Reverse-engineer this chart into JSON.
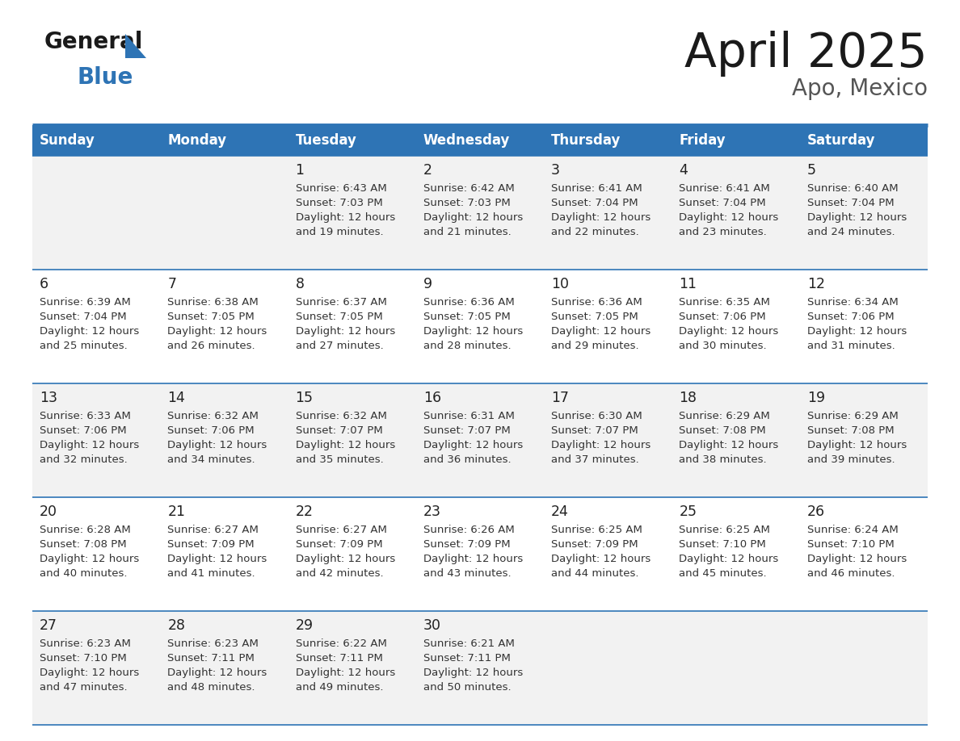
{
  "title": "April 2025",
  "subtitle": "Apo, Mexico",
  "days_of_week": [
    "Sunday",
    "Monday",
    "Tuesday",
    "Wednesday",
    "Thursday",
    "Friday",
    "Saturday"
  ],
  "header_bg": "#2e74b5",
  "header_text_color": "#ffffff",
  "cell_bg_odd": "#f2f2f2",
  "cell_bg_even": "#ffffff",
  "row_line_color": "#2e74b5",
  "text_color": "#333333",
  "title_color": "#1a1a1a",
  "subtitle_color": "#555555",
  "logo_color_general": "#1a1a1a",
  "logo_color_blue": "#2e74b5",
  "logo_triangle_color": "#2e74b5",
  "calendar_data": [
    [
      {
        "day": "",
        "sunrise": "",
        "sunset": "",
        "daylight_min": 0
      },
      {
        "day": "",
        "sunrise": "",
        "sunset": "",
        "daylight_min": 0
      },
      {
        "day": "1",
        "sunrise": "6:43 AM",
        "sunset": "7:03 PM",
        "daylight_min": 19
      },
      {
        "day": "2",
        "sunrise": "6:42 AM",
        "sunset": "7:03 PM",
        "daylight_min": 21
      },
      {
        "day": "3",
        "sunrise": "6:41 AM",
        "sunset": "7:04 PM",
        "daylight_min": 22
      },
      {
        "day": "4",
        "sunrise": "6:41 AM",
        "sunset": "7:04 PM",
        "daylight_min": 23
      },
      {
        "day": "5",
        "sunrise": "6:40 AM",
        "sunset": "7:04 PM",
        "daylight_min": 24
      }
    ],
    [
      {
        "day": "6",
        "sunrise": "6:39 AM",
        "sunset": "7:04 PM",
        "daylight_min": 25
      },
      {
        "day": "7",
        "sunrise": "6:38 AM",
        "sunset": "7:05 PM",
        "daylight_min": 26
      },
      {
        "day": "8",
        "sunrise": "6:37 AM",
        "sunset": "7:05 PM",
        "daylight_min": 27
      },
      {
        "day": "9",
        "sunrise": "6:36 AM",
        "sunset": "7:05 PM",
        "daylight_min": 28
      },
      {
        "day": "10",
        "sunrise": "6:36 AM",
        "sunset": "7:05 PM",
        "daylight_min": 29
      },
      {
        "day": "11",
        "sunrise": "6:35 AM",
        "sunset": "7:06 PM",
        "daylight_min": 30
      },
      {
        "day": "12",
        "sunrise": "6:34 AM",
        "sunset": "7:06 PM",
        "daylight_min": 31
      }
    ],
    [
      {
        "day": "13",
        "sunrise": "6:33 AM",
        "sunset": "7:06 PM",
        "daylight_min": 32
      },
      {
        "day": "14",
        "sunrise": "6:32 AM",
        "sunset": "7:06 PM",
        "daylight_min": 34
      },
      {
        "day": "15",
        "sunrise": "6:32 AM",
        "sunset": "7:07 PM",
        "daylight_min": 35
      },
      {
        "day": "16",
        "sunrise": "6:31 AM",
        "sunset": "7:07 PM",
        "daylight_min": 36
      },
      {
        "day": "17",
        "sunrise": "6:30 AM",
        "sunset": "7:07 PM",
        "daylight_min": 37
      },
      {
        "day": "18",
        "sunrise": "6:29 AM",
        "sunset": "7:08 PM",
        "daylight_min": 38
      },
      {
        "day": "19",
        "sunrise": "6:29 AM",
        "sunset": "7:08 PM",
        "daylight_min": 39
      }
    ],
    [
      {
        "day": "20",
        "sunrise": "6:28 AM",
        "sunset": "7:08 PM",
        "daylight_min": 40
      },
      {
        "day": "21",
        "sunrise": "6:27 AM",
        "sunset": "7:09 PM",
        "daylight_min": 41
      },
      {
        "day": "22",
        "sunrise": "6:27 AM",
        "sunset": "7:09 PM",
        "daylight_min": 42
      },
      {
        "day": "23",
        "sunrise": "6:26 AM",
        "sunset": "7:09 PM",
        "daylight_min": 43
      },
      {
        "day": "24",
        "sunrise": "6:25 AM",
        "sunset": "7:09 PM",
        "daylight_min": 44
      },
      {
        "day": "25",
        "sunrise": "6:25 AM",
        "sunset": "7:10 PM",
        "daylight_min": 45
      },
      {
        "day": "26",
        "sunrise": "6:24 AM",
        "sunset": "7:10 PM",
        "daylight_min": 46
      }
    ],
    [
      {
        "day": "27",
        "sunrise": "6:23 AM",
        "sunset": "7:10 PM",
        "daylight_min": 47
      },
      {
        "day": "28",
        "sunrise": "6:23 AM",
        "sunset": "7:11 PM",
        "daylight_min": 48
      },
      {
        "day": "29",
        "sunrise": "6:22 AM",
        "sunset": "7:11 PM",
        "daylight_min": 49
      },
      {
        "day": "30",
        "sunrise": "6:21 AM",
        "sunset": "7:11 PM",
        "daylight_min": 50
      },
      {
        "day": "",
        "sunrise": "",
        "sunset": "",
        "daylight_min": 0
      },
      {
        "day": "",
        "sunrise": "",
        "sunset": "",
        "daylight_min": 0
      },
      {
        "day": "",
        "sunrise": "",
        "sunset": "",
        "daylight_min": 0
      }
    ]
  ]
}
